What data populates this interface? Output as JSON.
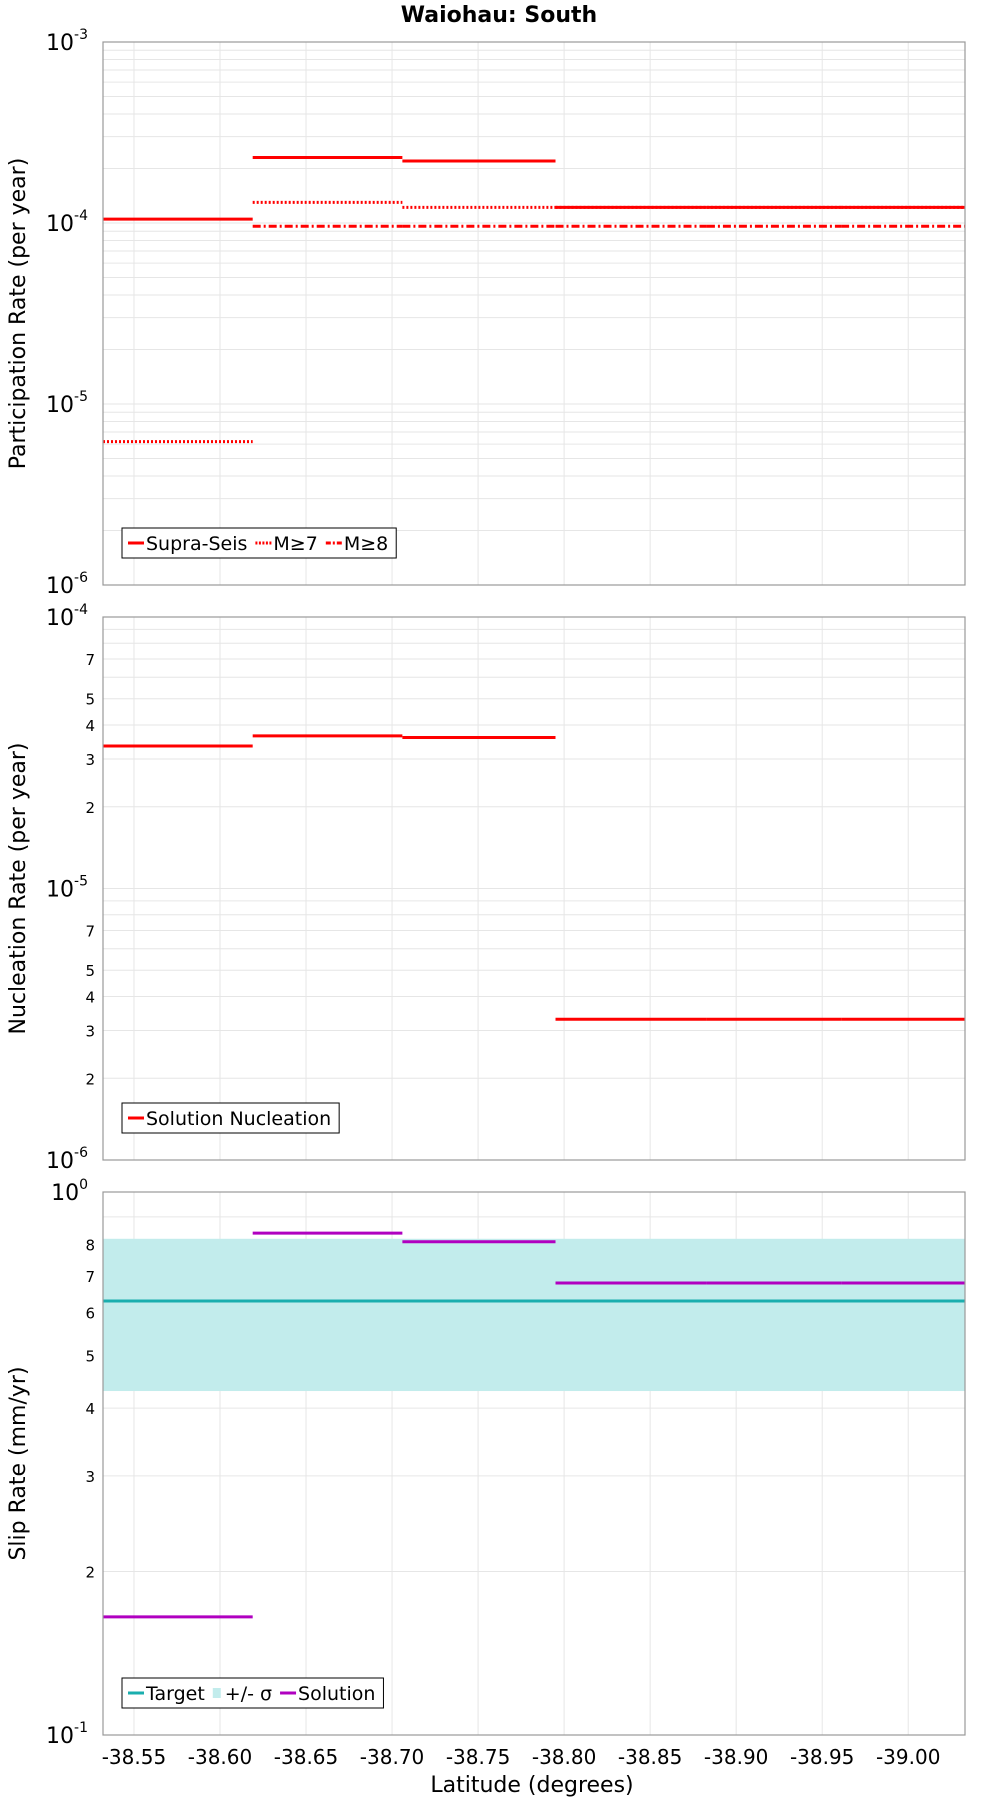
{
  "title": "Waiohau: South",
  "xlabel": "Latitude (degrees)",
  "xticks": [
    "-38.55",
    "-38.60",
    "-38.65",
    "-38.70",
    "-38.75",
    "-38.80",
    "-38.85",
    "-38.90",
    "-38.95",
    "-39.00"
  ],
  "colors": {
    "red": "#ff0000",
    "teal": "#1aaeae",
    "band": "#c2ecec",
    "purple": "#b000c0"
  },
  "chart_data": [
    {
      "type": "line",
      "step": true,
      "ylabel": "Participation Rate (per year)",
      "yscale": "log",
      "ylim": [
        1e-06,
        0.001
      ],
      "xlim": [
        -38.532,
        -39.033
      ],
      "major_ticks": [
        {
          "base": "10",
          "exp": "-6"
        },
        {
          "base": "10",
          "exp": "-5"
        },
        {
          "base": "10",
          "exp": "-4"
        },
        {
          "base": "10",
          "exp": "-3"
        }
      ],
      "minor_tick_labels": [],
      "series": [
        {
          "name": "Supra-Seis",
          "style": "solid",
          "color": "#ff0000",
          "segments": [
            [
              -38.532,
              -38.619,
              0.000105
            ],
            [
              -38.619,
              -38.706,
              0.00023
            ],
            [
              -38.706,
              -38.795,
              0.00022
            ],
            [
              -38.795,
              -38.883,
              0.000122
            ],
            [
              -38.883,
              -38.961,
              0.000122
            ],
            [
              -38.961,
              -39.033,
              0.000122
            ]
          ]
        },
        {
          "name": "M≥7",
          "style": "dotted",
          "color": "#ff0000",
          "segments": [
            [
              -38.532,
              -38.619,
              6.2e-06
            ],
            [
              -38.619,
              -38.706,
              0.00013
            ],
            [
              -38.706,
              -38.795,
              0.000122
            ],
            [
              -38.795,
              -38.883,
              0.000122
            ],
            [
              -38.883,
              -38.961,
              0.000122
            ],
            [
              -38.961,
              -39.033,
              0.000122
            ]
          ]
        },
        {
          "name": "M≥8",
          "style": "dashdot",
          "color": "#ff0000",
          "segments": [
            [
              -38.619,
              -38.706,
              9.6e-05
            ],
            [
              -38.706,
              -38.795,
              9.6e-05
            ],
            [
              -38.795,
              -38.883,
              9.6e-05
            ],
            [
              -38.883,
              -38.961,
              9.6e-05
            ],
            [
              -38.961,
              -39.033,
              9.6e-05
            ]
          ]
        }
      ]
    },
    {
      "type": "line",
      "step": true,
      "ylabel": "Nucleation Rate (per year)",
      "yscale": "log",
      "ylim": [
        1e-06,
        0.0001
      ],
      "xlim": [
        -38.532,
        -39.033
      ],
      "major_ticks": [
        {
          "base": "10",
          "exp": "-6"
        },
        {
          "base": "10",
          "exp": "-5"
        },
        {
          "base": "10",
          "exp": "-4"
        }
      ],
      "minor_tick_labels": [
        "2",
        "3",
        "4",
        "5",
        "7"
      ],
      "series": [
        {
          "name": "Solution Nucleation",
          "style": "solid",
          "color": "#ff0000",
          "segments": [
            [
              -38.532,
              -38.619,
              3.35e-05
            ],
            [
              -38.619,
              -38.706,
              3.65e-05
            ],
            [
              -38.706,
              -38.795,
              3.6e-05
            ],
            [
              -38.795,
              -38.883,
              3.3e-06
            ],
            [
              -38.883,
              -38.961,
              3.3e-06
            ],
            [
              -38.961,
              -39.033,
              3.3e-06
            ]
          ]
        }
      ]
    },
    {
      "type": "line",
      "step": true,
      "ylabel": "Slip Rate (mm/yr)",
      "yscale": "log",
      "ylim": [
        0.1,
        1.0
      ],
      "xlim": [
        -38.532,
        -39.033
      ],
      "major_ticks": [
        {
          "base": "10",
          "exp": "-1"
        },
        {
          "base": "10",
          "exp": "0"
        }
      ],
      "minor_tick_labels": [
        "2",
        "3",
        "4",
        "5",
        "6",
        "7",
        "8"
      ],
      "band": {
        "name": "+/- σ",
        "low": 0.43,
        "high": 0.82,
        "color": "#c2ecec"
      },
      "series": [
        {
          "name": "Target",
          "style": "solid",
          "color": "#1aaeae",
          "segments": [
            [
              -38.532,
              -39.033,
              0.63
            ]
          ]
        },
        {
          "name": "Solution",
          "style": "solid",
          "color": "#b000c0",
          "segments": [
            [
              -38.532,
              -38.619,
              0.165
            ],
            [
              -38.619,
              -38.706,
              0.84
            ],
            [
              -38.706,
              -38.795,
              0.81
            ],
            [
              -38.795,
              -38.883,
              0.68
            ],
            [
              -38.883,
              -38.961,
              0.68
            ],
            [
              -38.961,
              -39.033,
              0.68
            ]
          ]
        }
      ],
      "legend_order": [
        "Target",
        "+/- σ",
        "Solution"
      ]
    }
  ]
}
